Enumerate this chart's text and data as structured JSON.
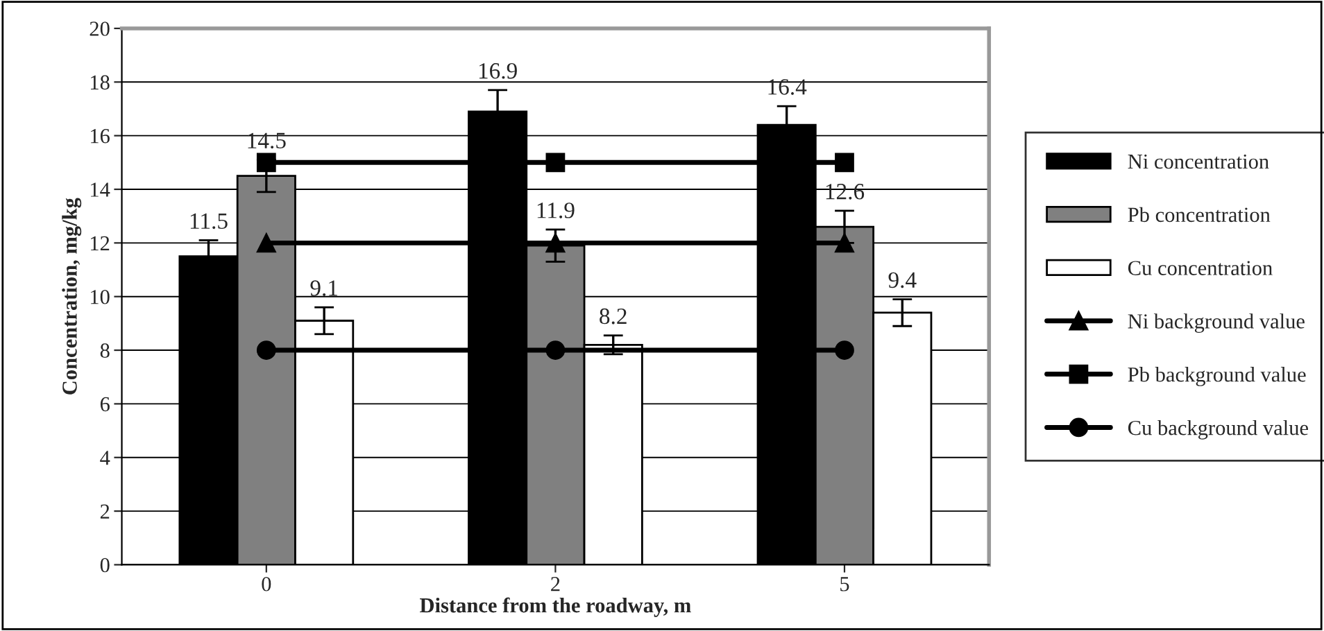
{
  "chart_data": {
    "type": "bar",
    "xlabel": "Distance from the roadway, m",
    "ylabel": "Concentration, mg/kg",
    "categories": [
      "0",
      "2",
      "5"
    ],
    "series": [
      {
        "name": "Ni concentration",
        "color": "#000000",
        "values": [
          11.5,
          16.9,
          16.4
        ],
        "errors": [
          0.6,
          0.8,
          0.7
        ],
        "value_labels": [
          "11.5",
          "16.9",
          "16.4"
        ]
      },
      {
        "name": "Pb concentration",
        "color": "#808080",
        "values": [
          14.5,
          11.9,
          12.6
        ],
        "errors": [
          0.6,
          0.6,
          0.6
        ],
        "value_labels": [
          "14.5",
          "11.9",
          "12.6"
        ]
      },
      {
        "name": "Cu concentration",
        "color": "#ffffff",
        "values": [
          9.1,
          8.2,
          9.4
        ],
        "errors": [
          0.5,
          0.35,
          0.5
        ],
        "value_labels": [
          "9.1",
          "8.2",
          "9.4"
        ]
      },
      {
        "name": "Ni background value",
        "type": "line",
        "color": "#000000",
        "marker": "triangle",
        "values": [
          12,
          12,
          12
        ]
      },
      {
        "name": "Pb background value",
        "type": "line",
        "color": "#000000",
        "marker": "square",
        "values": [
          15,
          15,
          15
        ]
      },
      {
        "name": "Cu background value",
        "type": "line",
        "color": "#000000",
        "marker": "circle",
        "values": [
          8,
          8,
          8
        ]
      }
    ],
    "ylim": [
      0,
      20
    ],
    "yticks": [
      0,
      2,
      4,
      6,
      8,
      10,
      12,
      14,
      16,
      18,
      20
    ],
    "grid": "y",
    "legend": "right"
  }
}
